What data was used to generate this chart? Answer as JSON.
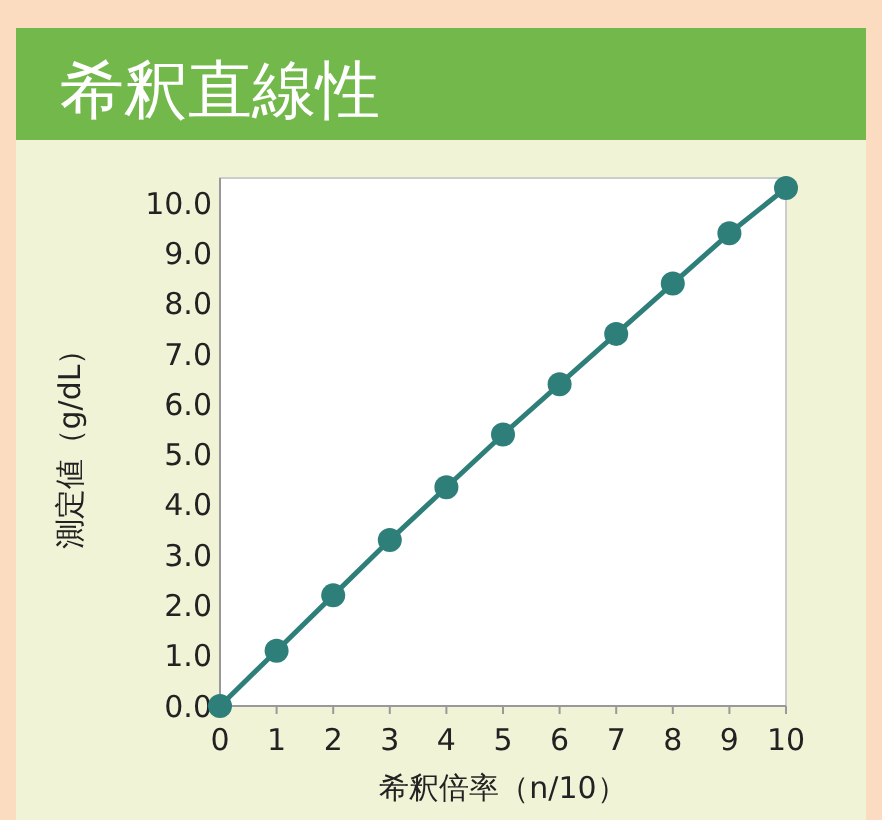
{
  "chart_data": {
    "type": "line",
    "title": "希釈直線性",
    "xlabel": "希釈倍率（n/10）",
    "ylabel": "測定値（g/dL）",
    "x": [
      0,
      1,
      2,
      3,
      4,
      5,
      6,
      7,
      8,
      9,
      10
    ],
    "series": [
      {
        "color": "#2e7f7a",
        "values": [
          0,
          1.1,
          2.2,
          3.3,
          4.35,
          5.4,
          6.4,
          7.4,
          8.4,
          9.4,
          10.3
        ]
      }
    ],
    "xlim": [
      0,
      10
    ],
    "xticks": [
      0,
      1,
      2,
      3,
      4,
      5,
      6,
      7,
      8,
      9,
      10
    ],
    "ylim": [
      0,
      10.5
    ],
    "yticks": [
      {
        "value": 0,
        "label": "0.0"
      },
      {
        "value": 1,
        "label": "1.0"
      },
      {
        "value": 2,
        "label": "2.0"
      },
      {
        "value": 3,
        "label": "3.0"
      },
      {
        "value": 4,
        "label": "4.0"
      },
      {
        "value": 5,
        "label": "5.0"
      },
      {
        "value": 6,
        "label": "6.0"
      },
      {
        "value": 7,
        "label": "7.0"
      },
      {
        "value": 8,
        "label": "8.0"
      },
      {
        "value": 9,
        "label": "9.0"
      },
      {
        "value": 10,
        "label": "10.0"
      }
    ],
    "marker": "circle",
    "grid": false
  }
}
